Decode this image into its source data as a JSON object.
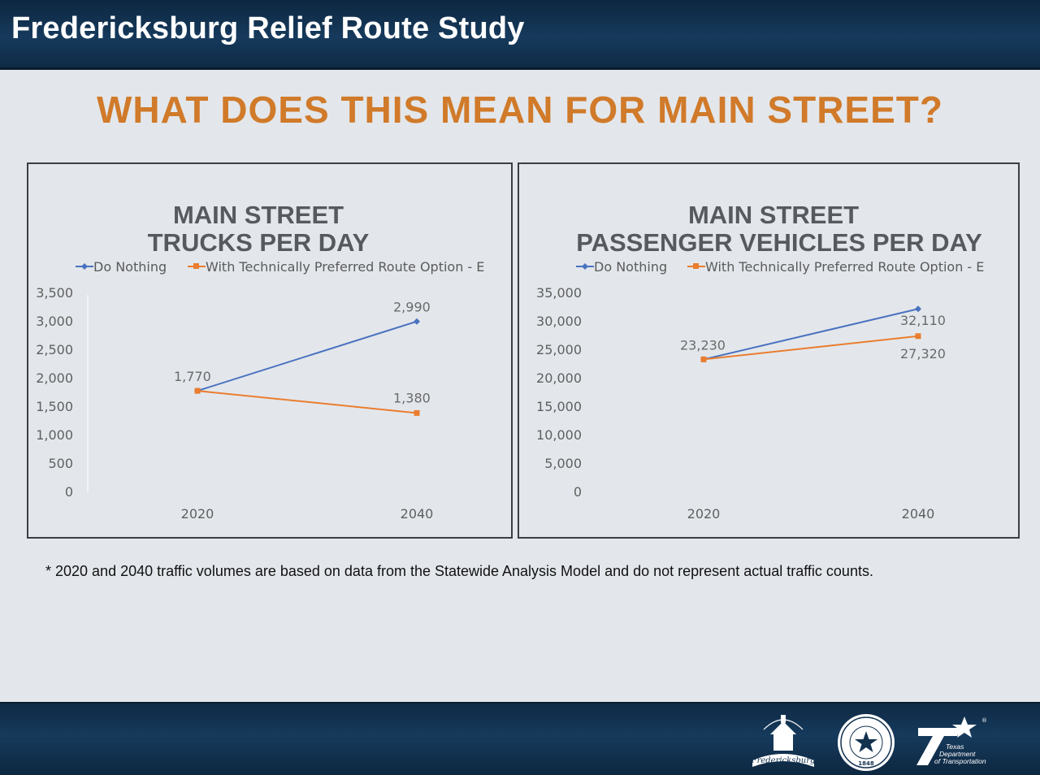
{
  "header": {
    "title": "Fredericksburg Relief Route Study"
  },
  "headline": "WHAT DOES THIS MEAN FOR MAIN STREET?",
  "footnote": "* 2020 and 2040 traffic volumes are based on data from the Statewide Analysis Model and do not represent actual traffic counts.",
  "colors": {
    "series_blue": "#4a72c0",
    "series_orange": "#ea7d2f",
    "headline": "#d07a2a",
    "bar_navy": "#12314f"
  },
  "legend": {
    "do_nothing": "Do Nothing",
    "with_route": "With Technically Preferred Route Option - E"
  },
  "logos": {
    "city": {
      "icon": "city-of-fredericksburg-seal",
      "text": "Fredericksburg"
    },
    "county": {
      "icon": "gillespie-county-seal",
      "year": "1848"
    },
    "txdot": {
      "icon": "txdot-logo",
      "line1": "Texas",
      "line2": "Department",
      "line3": "of Transportation"
    }
  },
  "chart_data": [
    {
      "type": "line",
      "title_line1": "MAIN STREET",
      "title_line2": "TRUCKS PER DAY",
      "categories": [
        "2020",
        "2040"
      ],
      "series": [
        {
          "name": "Do Nothing",
          "values": [
            1770,
            2990
          ],
          "labels": [
            "1,770",
            "2,990"
          ]
        },
        {
          "name": "With Technically Preferred Route Option - E",
          "values": [
            1770,
            1380
          ],
          "labels": [
            "",
            "1,380"
          ]
        }
      ],
      "ylim": [
        0,
        3500
      ],
      "yticks": [
        "0",
        "500",
        "1,000",
        "1,500",
        "2,000",
        "2,500",
        "3,000",
        "3,500"
      ],
      "grid": false,
      "legend_position": "top"
    },
    {
      "type": "line",
      "title_line1": "MAIN STREET",
      "title_line2": "PASSENGER VEHICLES PER DAY",
      "categories": [
        "2020",
        "2040"
      ],
      "series": [
        {
          "name": "Do Nothing",
          "values": [
            23230,
            32110
          ],
          "labels": [
            "23,230",
            "32,110"
          ]
        },
        {
          "name": "With Technically Preferred Route Option - E",
          "values": [
            23230,
            27320
          ],
          "labels": [
            "",
            "27,320"
          ]
        }
      ],
      "ylim": [
        0,
        35000
      ],
      "yticks": [
        "0",
        "5,000",
        "10,000",
        "15,000",
        "20,000",
        "25,000",
        "30,000",
        "35,000"
      ],
      "grid": false,
      "legend_position": "top"
    }
  ]
}
